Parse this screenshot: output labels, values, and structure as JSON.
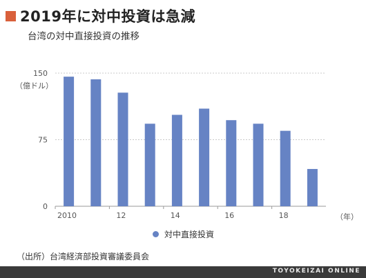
{
  "title": "2019年に対中投資は急減",
  "subtitle": "台湾の対中直接投資の推移",
  "accent_color": "#d9603b",
  "bar_color": "#6683c4",
  "source": "（出所）台湾経済部投資審議委員会",
  "brand": "TOYOKEIZAI ONLINE",
  "chart_data": {
    "type": "bar",
    "y_unit_label": "（億ドル）",
    "x_unit_label": "（年）",
    "categories": [
      "2010",
      "2011",
      "2012",
      "2013",
      "2014",
      "2015",
      "2016",
      "2017",
      "2018",
      "2019"
    ],
    "x_tick_labels": [
      {
        "index": 0,
        "label": "2010"
      },
      {
        "index": 2,
        "label": "12"
      },
      {
        "index": 4,
        "label": "14"
      },
      {
        "index": 6,
        "label": "16"
      },
      {
        "index": 8,
        "label": "18"
      }
    ],
    "series": [
      {
        "name": "対中直接投資",
        "values": [
          146,
          143,
          128,
          93,
          103,
          110,
          97,
          93,
          85,
          42
        ]
      }
    ],
    "y_ticks": [
      0,
      75,
      150
    ],
    "ylim": [
      0,
      150
    ],
    "grid": true,
    "legend": "bottom"
  }
}
